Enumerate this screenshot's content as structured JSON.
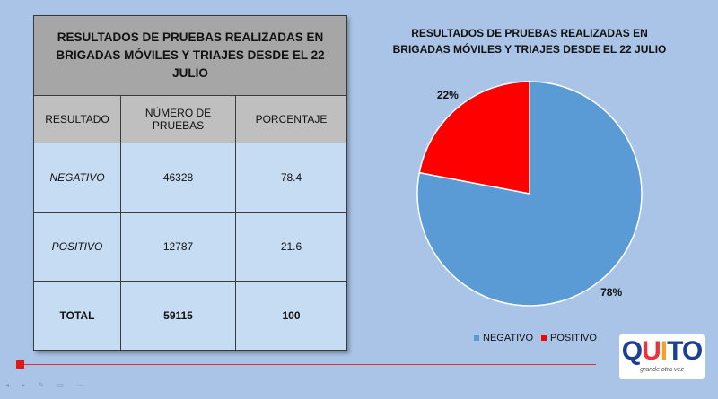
{
  "table": {
    "title": "RESULTADOS DE PRUEBAS REALIZADAS EN BRIGADAS MÓVILES Y TRIAJES DESDE EL 22 JULIO",
    "headers": [
      "RESULTADO",
      "NÚMERO DE PRUEBAS",
      "PORCENTAJE"
    ],
    "rows": [
      {
        "resultado": "NEGATIVO",
        "numero": "46328",
        "porcentaje": "78.4"
      },
      {
        "resultado": "POSITIVO",
        "numero": "12787",
        "porcentaje": "21.6"
      },
      {
        "resultado": "TOTAL",
        "numero": "59115",
        "porcentaje": "100"
      }
    ]
  },
  "chart_data": {
    "type": "pie",
    "title": "RESULTADOS DE PRUEBAS REALIZADAS EN BRIGADAS MÓVILES Y TRIAJES DESDE EL 22 JULIO",
    "categories": [
      "NEGATIVO",
      "POSITIVO"
    ],
    "values": [
      78,
      22
    ],
    "data_labels": [
      "78%",
      "22%"
    ],
    "colors": [
      "#5b9bd5",
      "#ff0000"
    ],
    "legend_position": "bottom"
  },
  "logo": {
    "text": "QUITO",
    "tagline": "grande otra vez"
  }
}
